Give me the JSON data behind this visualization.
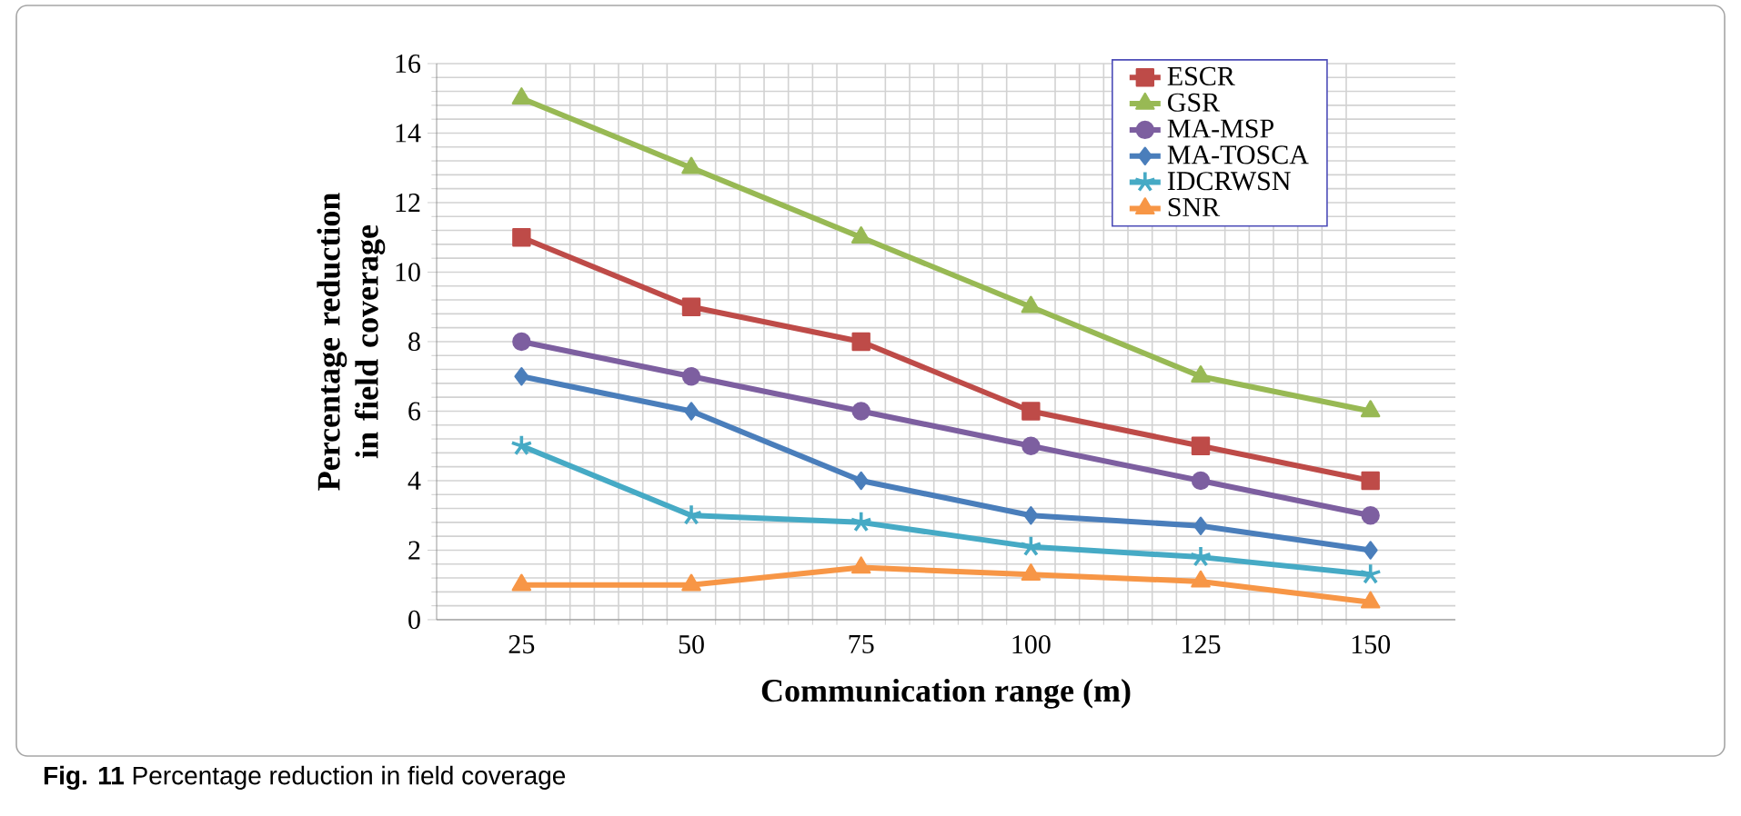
{
  "chart_data": {
    "type": "line",
    "xlabel": "Communication range (m)",
    "ylabel": "Percentage reduction in field coverage",
    "categories": [
      "25",
      "50",
      "75",
      "100",
      "125",
      "150"
    ],
    "series": [
      {
        "name": "ESCR",
        "color": "#be4b48",
        "marker": "square",
        "values": [
          11,
          9,
          8,
          6,
          5,
          4
        ]
      },
      {
        "name": "GSR",
        "color": "#98b954",
        "marker": "triangle",
        "values": [
          15,
          13,
          11,
          9,
          7,
          6
        ]
      },
      {
        "name": "MA-MSP",
        "color": "#7d5fa0",
        "marker": "circle",
        "values": [
          8,
          7,
          6,
          5,
          4,
          3
        ]
      },
      {
        "name": "MA-TOSCA",
        "color": "#4a7ebb",
        "marker": "diamond",
        "values": [
          7,
          6,
          4,
          3,
          2.7,
          2
        ]
      },
      {
        "name": "IDCRWSN",
        "color": "#46aac5",
        "marker": "cross",
        "values": [
          5,
          3,
          2.8,
          2.1,
          1.8,
          1.3
        ]
      },
      {
        "name": "SNR",
        "color": "#f79646",
        "marker": "triangle",
        "values": [
          1,
          1,
          1.5,
          1.3,
          1.1,
          0.5
        ]
      }
    ],
    "ylim": [
      0,
      16
    ],
    "yticks": [
      0,
      2,
      4,
      6,
      8,
      10,
      12,
      14,
      16
    ],
    "grid": true,
    "legend": "top right",
    "line_style": "solid",
    "annotations": [
      "**Fig. 11** Percentage reduction in field coverage"
    ]
  }
}
